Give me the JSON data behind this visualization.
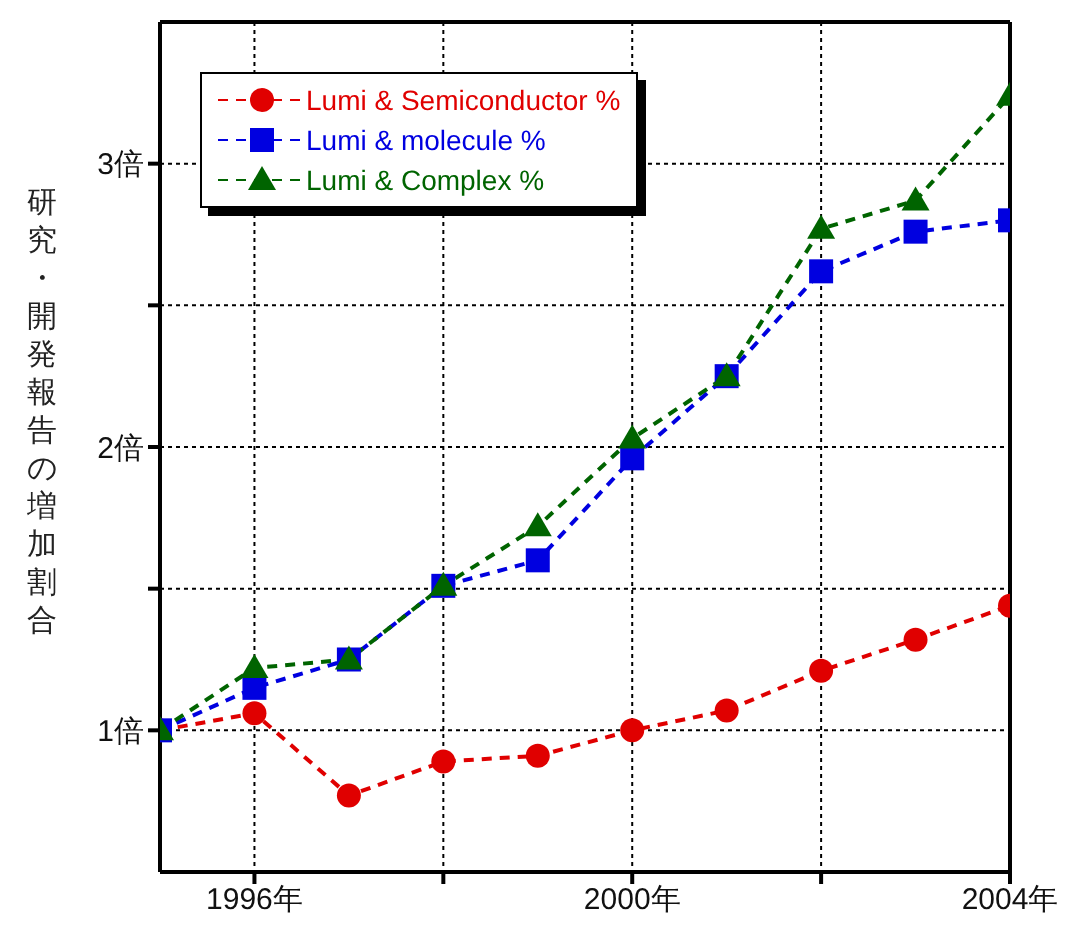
{
  "chart_data": {
    "type": "line",
    "ylabel": "研究・開発報告の増加割合",
    "x": [
      1995,
      1996,
      1997,
      1998,
      1999,
      2000,
      2001,
      2002,
      2003,
      2004
    ],
    "series": [
      {
        "name": "Lumi & Semiconductor %",
        "color": "#e00000",
        "marker": "circle",
        "values": [
          1.0,
          1.06,
          0.77,
          0.89,
          0.91,
          1.0,
          1.07,
          1.21,
          1.32,
          1.44
        ]
      },
      {
        "name": "Lumi & molecule %",
        "color": "#0000e0",
        "marker": "square",
        "values": [
          1.0,
          1.15,
          1.25,
          1.51,
          1.6,
          1.96,
          2.25,
          2.62,
          2.76,
          2.8
        ]
      },
      {
        "name": "Lumi & Complex %",
        "color": "#006400",
        "marker": "triangle",
        "values": [
          1.0,
          1.22,
          1.25,
          1.51,
          1.72,
          2.03,
          2.25,
          2.77,
          2.87,
          3.24
        ]
      }
    ],
    "xlim": [
      1995,
      2004
    ],
    "xticks": [
      {
        "value": 1996,
        "label": "1996年"
      },
      {
        "value": 1998,
        "label": null
      },
      {
        "value": 2000,
        "label": "2000年"
      },
      {
        "value": 2002,
        "label": null
      },
      {
        "value": 2004,
        "label": "2004年"
      }
    ],
    "ylim": [
      0.5,
      3.5
    ],
    "yticks": [
      {
        "value": 1,
        "label": "1倍"
      },
      {
        "value": 1.5,
        "label": null
      },
      {
        "value": 2,
        "label": "2倍"
      },
      {
        "value": 2.5,
        "label": null
      },
      {
        "value": 3,
        "label": "3倍"
      }
    ],
    "grid": true,
    "legend": "top left",
    "line_style": "dashed"
  }
}
